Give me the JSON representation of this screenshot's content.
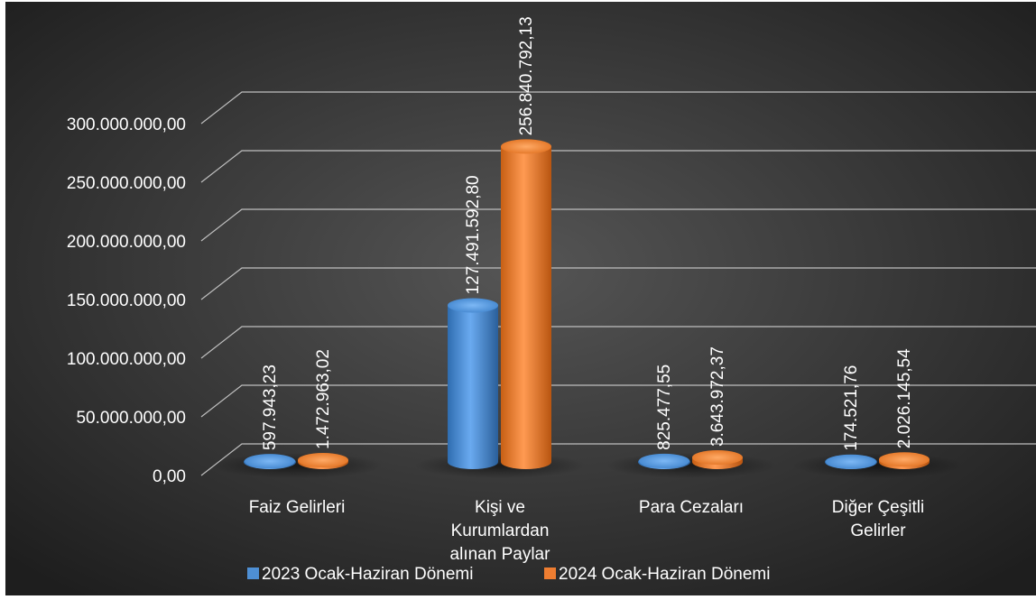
{
  "chart_data": {
    "type": "bar",
    "title": "",
    "xlabel": "",
    "ylabel": "",
    "ylim": [
      0,
      300000000
    ],
    "yticks": [
      "0,00",
      "50.000.000,00",
      "100.000.000,00",
      "150.000.000,00",
      "200.000.000,00",
      "250.000.000,00",
      "300.000.000,00"
    ],
    "grid": true,
    "legend_position": "bottom",
    "categories": [
      [
        "Faiz Gelirleri"
      ],
      [
        "Kişi ve",
        "Kurumlardan",
        "alınan Paylar"
      ],
      [
        "Para Cezaları"
      ],
      [
        "Diğer Çeşitli",
        "Gelirler"
      ]
    ],
    "series": [
      {
        "name": "2023 Ocak-Haziran Dönemi",
        "values": [
          597943.23,
          127491592.8,
          825477.55,
          174521.76
        ],
        "labels": [
          "597.943,23",
          "127.491.592,80",
          "825.477,55",
          "174.521,76"
        ],
        "color": "#4e8fd4"
      },
      {
        "name": "2024 Ocak-Haziran Dönemi",
        "values": [
          1472963.02,
          256840792.13,
          3643972.37,
          2026145.54
        ],
        "labels": [
          "1.472.963,02",
          "256.840.792,13",
          "3.643.972,37",
          "2.026.145,54"
        ],
        "color": "#ee7d31"
      }
    ],
    "colors": {
      "background_inner": "#4b4b4b",
      "background_outer": "#222222",
      "text": "#ffffff",
      "grid": "#bfbfbf"
    }
  }
}
